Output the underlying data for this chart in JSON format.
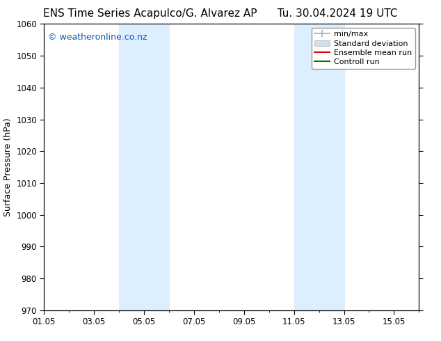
{
  "title_left": "ENS Time Series Acapulco/G. Alvarez AP",
  "title_right": "Tu. 30.04.2024 19 UTC",
  "ylabel": "Surface Pressure (hPa)",
  "ylim": [
    970,
    1060
  ],
  "yticks": [
    970,
    980,
    990,
    1000,
    1010,
    1020,
    1030,
    1040,
    1050,
    1060
  ],
  "xlim": [
    0,
    15
  ],
  "xtick_labels": [
    "01.05",
    "03.05",
    "05.05",
    "07.05",
    "09.05",
    "11.05",
    "13.05",
    "15.05"
  ],
  "xtick_positions": [
    0,
    2,
    4,
    6,
    8,
    10,
    12,
    14
  ],
  "shaded_regions": [
    {
      "start": 3.0,
      "end": 5.0
    },
    {
      "start": 10.0,
      "end": 12.0
    }
  ],
  "shaded_color": "#ddeeff",
  "watermark_text": "© weatheronline.co.nz",
  "watermark_color": "#1155bb",
  "watermark_fontsize": 9,
  "legend_items": [
    {
      "label": "min/max",
      "color": "#aaaaaa",
      "lw": 1.2,
      "style": "minmax"
    },
    {
      "label": "Standard deviation",
      "color": "#cce0f0",
      "lw": 8,
      "style": "rect"
    },
    {
      "label": "Ensemble mean run",
      "color": "#dd0000",
      "lw": 1.5,
      "style": "line"
    },
    {
      "label": "Controll run",
      "color": "#007700",
      "lw": 1.5,
      "style": "line"
    }
  ],
  "bg_color": "#ffffff",
  "axes_bg_color": "#ffffff",
  "title_fontsize": 11,
  "label_fontsize": 9,
  "tick_fontsize": 8.5,
  "legend_fontsize": 8
}
